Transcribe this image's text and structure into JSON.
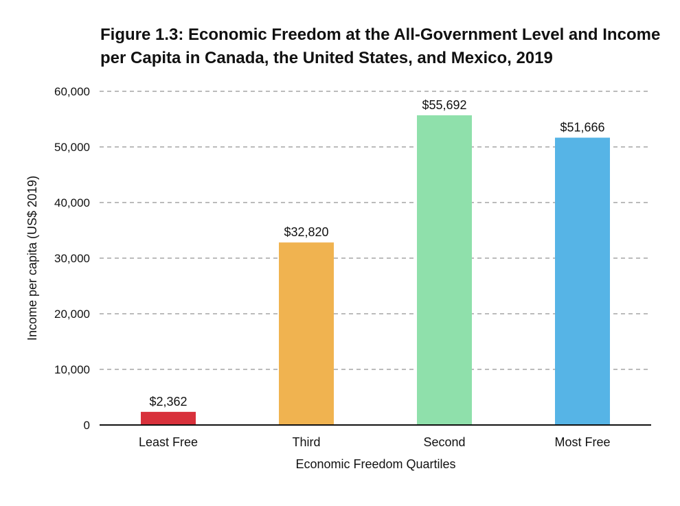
{
  "chart_data": {
    "type": "bar",
    "title_lines": [
      "Figure 1.3: Economic Freedom at the All-Government Level and Income",
      "per Capita in Canada, the United States, and Mexico, 2019"
    ],
    "xlabel": "Economic Freedom Quartiles",
    "ylabel": "Income per capita (US$ 2019)",
    "categories": [
      "Least Free",
      "Third",
      "Second",
      "Most Free"
    ],
    "values": [
      2362,
      32820,
      55692,
      51666
    ],
    "data_labels": [
      "$2,362",
      "$32,820",
      "$55,692",
      "$51,666"
    ],
    "bar_colors": [
      "#d8313b",
      "#f0b350",
      "#8fe0ab",
      "#56b4e6"
    ],
    "ylim": [
      0,
      60000
    ],
    "yticks": [
      0,
      10000,
      20000,
      30000,
      40000,
      50000,
      60000
    ],
    "ytick_labels": [
      "0",
      "10,000",
      "20,000",
      "30,000",
      "40,000",
      "50,000",
      "60,000"
    ],
    "grid": "horizontal dashed",
    "legend": "none"
  }
}
